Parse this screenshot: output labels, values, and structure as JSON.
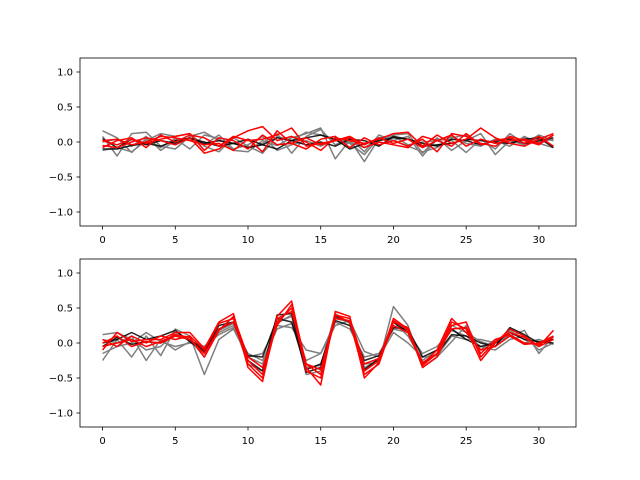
{
  "chart_data": [
    {
      "type": "line",
      "title": "",
      "xlabel": "",
      "ylabel": "",
      "xlim": [
        -1.55,
        32.55
      ],
      "ylim": [
        -1.2,
        1.2
      ],
      "xticks": [
        0,
        5,
        10,
        15,
        20,
        25,
        30
      ],
      "yticks": [
        -1.0,
        -0.5,
        0.0,
        0.5,
        1.0
      ],
      "ytick_labels": [
        "−1.0",
        "−0.5",
        "0.0",
        "0.5",
        "1.0"
      ],
      "grid": false,
      "series_colors": {
        "gray": "#7f7f7f",
        "dark": "#000000",
        "red": "#ff0000"
      },
      "series": [
        {
          "color": "gray",
          "values": [
            0.16,
            0.06,
            -0.15,
            0.05,
            -0.08,
            0.05,
            -0.1,
            0.1,
            0.05,
            -0.12,
            -0.14,
            0.02,
            -0.05,
            0.06,
            0.12,
            0.2,
            -0.24,
            0.03,
            -0.28,
            0.05,
            0.02,
            0.08,
            -0.2,
            0.04,
            0.02,
            -0.15,
            0.04,
            -0.1,
            0.12,
            -0.02,
            0.1,
            0.02
          ]
        },
        {
          "color": "gray",
          "values": [
            0.08,
            -0.2,
            0.12,
            0.14,
            -0.06,
            -0.1,
            0.08,
            0.14,
            0.02,
            -0.02,
            -0.08,
            -0.02,
            0.12,
            -0.16,
            0.08,
            0.18,
            -0.04,
            0.06,
            -0.14,
            0.1,
            0.02,
            -0.06,
            -0.14,
            -0.08,
            0.06,
            0.1,
            -0.04,
            0.02,
            -0.06,
            0.08,
            -0.02,
            -0.08
          ]
        },
        {
          "color": "gray",
          "values": [
            -0.12,
            -0.08,
            -0.14,
            0.02,
            0.12,
            0.08,
            0.12,
            -0.06,
            -0.14,
            0.06,
            -0.06,
            -0.16,
            0.08,
            0.02,
            0.14,
            0.1,
            0.02,
            -0.02,
            -0.18,
            0.06,
            0.1,
            0.12,
            -0.16,
            0.06,
            -0.12,
            0.02,
            0.12,
            -0.18,
            0.02,
            -0.04,
            0.06,
            0.02
          ]
        },
        {
          "color": "gray",
          "values": [
            0.0,
            0.04,
            -0.06,
            0.08,
            -0.12,
            0.02,
            0.06,
            -0.04,
            0.1,
            -0.1,
            -0.04,
            0.08,
            -0.12,
            -0.04,
            0.02,
            -0.06,
            0.04,
            0.0,
            -0.08,
            0.04,
            0.08,
            -0.04,
            0.0,
            0.02,
            0.08,
            -0.02,
            -0.06,
            0.04,
            -0.02,
            0.06,
            0.0,
            0.04
          ]
        },
        {
          "color": "dark",
          "values": [
            -0.1,
            -0.1,
            -0.05,
            -0.02,
            -0.06,
            0.02,
            0.05,
            0.0,
            -0.06,
            -0.02,
            -0.08,
            -0.04,
            -0.1,
            0.02,
            0.06,
            0.1,
            0.04,
            -0.1,
            -0.02,
            0.02,
            0.06,
            0.04,
            -0.06,
            -0.04,
            -0.02,
            0.04,
            0.02,
            0.0,
            -0.02,
            0.04,
            0.06,
            -0.08
          ]
        },
        {
          "color": "dark",
          "values": [
            0.05,
            -0.08,
            0.04,
            -0.04,
            0.02,
            -0.02,
            0.06,
            -0.02,
            0.02,
            -0.02,
            0.04,
            -0.04,
            0.06,
            0.02,
            -0.04,
            0.0,
            -0.06,
            0.04,
            0.02,
            -0.06,
            0.08,
            0.04,
            -0.02,
            -0.06,
            0.04,
            0.02,
            -0.04,
            0.02,
            0.04,
            -0.02,
            0.02,
            0.06
          ]
        },
        {
          "color": "red",
          "values": [
            -0.05,
            -0.08,
            0.0,
            0.06,
            0.02,
            -0.04,
            0.06,
            -0.16,
            -0.1,
            0.06,
            0.16,
            0.22,
            0.02,
            0.08,
            0.0,
            -0.12,
            0.06,
            0.02,
            -0.02,
            0.04,
            0.12,
            0.14,
            -0.06,
            0.1,
            -0.02,
            0.04,
            0.2,
            0.06,
            -0.02,
            -0.06,
            0.04,
            0.12
          ]
        },
        {
          "color": "red",
          "values": [
            0.02,
            0.04,
            -0.04,
            0.0,
            0.08,
            0.06,
            0.02,
            -0.04,
            -0.02,
            -0.12,
            0.04,
            -0.14,
            0.16,
            -0.02,
            -0.1,
            0.04,
            0.08,
            -0.08,
            0.06,
            -0.04,
            0.02,
            -0.06,
            0.04,
            -0.14,
            0.12,
            0.08,
            -0.02,
            -0.06,
            0.08,
            0.02,
            -0.04,
            0.1
          ]
        },
        {
          "color": "red",
          "values": [
            -0.08,
            0.02,
            0.06,
            -0.08,
            0.1,
            0.0,
            0.1,
            0.06,
            -0.06,
            0.08,
            0.02,
            0.04,
            0.1,
            0.2,
            -0.06,
            -0.02,
            0.02,
            0.06,
            -0.08,
            0.0,
            -0.04,
            -0.08,
            0.08,
            0.02,
            -0.06,
            0.12,
            -0.04,
            0.02,
            0.06,
            -0.02,
            0.08,
            -0.06
          ]
        },
        {
          "color": "red",
          "values": [
            0.02,
            -0.04,
            0.04,
            -0.02,
            0.04,
            0.08,
            0.12,
            -0.12,
            0.06,
            0.02,
            -0.1,
            0.1,
            -0.04,
            -0.02,
            0.06,
            -0.04,
            0.02,
            0.08,
            -0.04,
            0.06,
            -0.02,
            0.04,
            -0.08,
            0.02,
            0.1,
            -0.06,
            0.04,
            -0.02,
            0.02,
            0.04,
            -0.02,
            0.1
          ]
        }
      ]
    },
    {
      "type": "line",
      "title": "",
      "xlabel": "",
      "ylabel": "",
      "xlim": [
        -1.55,
        32.55
      ],
      "ylim": [
        -1.2,
        1.2
      ],
      "xticks": [
        0,
        5,
        10,
        15,
        20,
        25,
        30
      ],
      "yticks": [
        -1.0,
        -0.5,
        0.0,
        0.5,
        1.0
      ],
      "ytick_labels": [
        "−1.0",
        "−0.5",
        "0.0",
        "0.5",
        "1.0"
      ],
      "grid": false,
      "series_colors": {
        "gray": "#7f7f7f",
        "dark": "#000000",
        "red": "#ff0000"
      },
      "series": [
        {
          "color": "gray",
          "values": [
            -0.25,
            0.05,
            -0.2,
            0.1,
            -0.18,
            0.2,
            0.1,
            -0.45,
            0.05,
            0.2,
            -0.2,
            -0.3,
            0.3,
            0.38,
            -0.45,
            -0.4,
            0.35,
            0.3,
            -0.3,
            -0.28,
            0.52,
            0.25,
            -0.35,
            -0.2,
            0.02,
            0.25,
            -0.1,
            0.05,
            0.1,
            0.18,
            -0.15,
            0.1
          ]
        },
        {
          "color": "gray",
          "values": [
            0.12,
            0.15,
            0.05,
            -0.1,
            -0.05,
            0.15,
            0.05,
            -0.2,
            0.18,
            0.28,
            -0.3,
            -0.4,
            0.28,
            0.4,
            -0.35,
            -0.32,
            0.42,
            0.28,
            -0.35,
            -0.25,
            0.3,
            0.1,
            -0.25,
            -0.1,
            0.25,
            0.15,
            0.02,
            -0.05,
            0.18,
            0.05,
            -0.05,
            0.05
          ]
        },
        {
          "color": "gray",
          "values": [
            0.05,
            0.0,
            0.1,
            -0.25,
            0.05,
            -0.1,
            0.02,
            -0.05,
            0.12,
            0.22,
            -0.15,
            -0.25,
            0.2,
            0.28,
            -0.25,
            -0.15,
            0.3,
            0.2,
            -0.2,
            -0.15,
            0.2,
            0.15,
            -0.15,
            -0.05,
            0.18,
            0.1,
            -0.05,
            -0.1,
            0.05,
            0.1,
            -0.1,
            0.0
          ]
        },
        {
          "color": "gray",
          "values": [
            -0.15,
            -0.05,
            0.0,
            0.15,
            0.02,
            -0.05,
            0.0,
            -0.05,
            0.15,
            0.25,
            -0.2,
            -0.15,
            0.25,
            0.22,
            -0.1,
            -0.15,
            0.25,
            0.32,
            -0.12,
            -0.2,
            0.15,
            0.0,
            -0.2,
            -0.18,
            0.1,
            0.05,
            0.05,
            0.0,
            0.1,
            0.0,
            0.05,
            -0.02
          ]
        },
        {
          "color": "dark",
          "values": [
            0.0,
            0.05,
            0.15,
            0.05,
            0.1,
            0.18,
            0.02,
            -0.12,
            0.25,
            0.3,
            -0.25,
            -0.4,
            0.4,
            0.42,
            -0.42,
            -0.35,
            0.38,
            0.3,
            -0.38,
            -0.22,
            0.3,
            0.15,
            -0.3,
            -0.15,
            0.12,
            0.1,
            0.0,
            -0.05,
            0.22,
            0.12,
            0.0,
            0.05
          ]
        },
        {
          "color": "dark",
          "values": [
            -0.05,
            0.08,
            -0.02,
            0.02,
            0.0,
            0.1,
            0.05,
            -0.1,
            0.2,
            0.3,
            -0.18,
            -0.2,
            0.35,
            0.3,
            -0.38,
            -0.3,
            0.32,
            0.25,
            -0.25,
            -0.18,
            0.22,
            0.2,
            -0.2,
            -0.1,
            0.2,
            0.05,
            -0.05,
            0.0,
            0.15,
            0.05,
            0.02,
            0.0
          ]
        },
        {
          "color": "red",
          "values": [
            -0.1,
            0.15,
            0.02,
            0.05,
            0.05,
            0.15,
            0.15,
            -0.08,
            0.3,
            0.42,
            -0.35,
            -0.55,
            0.38,
            0.6,
            -0.35,
            -0.6,
            0.45,
            0.38,
            -0.5,
            -0.28,
            0.35,
            0.2,
            -0.35,
            -0.2,
            0.25,
            0.3,
            -0.2,
            0.02,
            0.15,
            0.08,
            -0.05,
            0.05
          ]
        },
        {
          "color": "red",
          "values": [
            0.05,
            -0.05,
            0.1,
            0.0,
            0.1,
            0.05,
            0.1,
            -0.1,
            0.28,
            0.35,
            -0.3,
            -0.5,
            0.3,
            0.5,
            -0.4,
            -0.5,
            0.4,
            0.3,
            -0.45,
            -0.3,
            0.3,
            0.22,
            -0.32,
            -0.15,
            0.3,
            0.2,
            -0.25,
            0.0,
            0.2,
            0.1,
            -0.05,
            0.18
          ]
        },
        {
          "color": "red",
          "values": [
            0.0,
            0.1,
            -0.05,
            0.02,
            0.0,
            0.1,
            0.05,
            -0.15,
            0.2,
            0.3,
            -0.25,
            -0.45,
            0.35,
            0.45,
            -0.3,
            -0.45,
            0.35,
            0.32,
            -0.4,
            -0.25,
            0.25,
            0.15,
            -0.3,
            -0.1,
            0.35,
            0.15,
            -0.1,
            -0.05,
            0.1,
            -0.02,
            0.0,
            0.1
          ]
        },
        {
          "color": "red",
          "values": [
            -0.05,
            0.0,
            0.05,
            -0.05,
            0.02,
            0.12,
            0.08,
            -0.2,
            0.18,
            0.38,
            -0.2,
            -0.35,
            0.25,
            0.55,
            -0.3,
            -0.38,
            0.4,
            0.35,
            -0.3,
            -0.22,
            0.32,
            0.18,
            -0.28,
            -0.15,
            0.2,
            0.22,
            -0.15,
            0.05,
            0.12,
            0.0,
            -0.02,
            0.08
          ]
        }
      ]
    }
  ]
}
